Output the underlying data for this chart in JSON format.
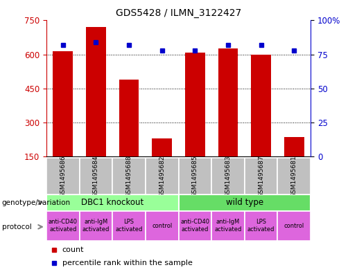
{
  "title": "GDS5428 / ILMN_3122427",
  "samples": [
    "GSM1495686",
    "GSM1495684",
    "GSM1495688",
    "GSM1495682",
    "GSM1495685",
    "GSM1495683",
    "GSM1495687",
    "GSM1495681"
  ],
  "counts": [
    615,
    720,
    490,
    230,
    608,
    625,
    600,
    235
  ],
  "percentile_ranks": [
    82,
    84,
    82,
    78,
    78,
    82,
    82,
    78
  ],
  "y_min": 150,
  "y_max": 750,
  "y_ticks": [
    150,
    300,
    450,
    600,
    750
  ],
  "y2_ticks": [
    0,
    25,
    50,
    75,
    100
  ],
  "bar_color": "#cc0000",
  "dot_color": "#0000cc",
  "bar_width": 0.6,
  "genotype_groups": [
    {
      "label": "DBC1 knockout",
      "start": 0,
      "end": 4,
      "color": "#99ff99"
    },
    {
      "label": "wild type",
      "start": 4,
      "end": 8,
      "color": "#66dd66"
    }
  ],
  "protocol_labels": [
    "anti-CD40\nactivated",
    "anti-IgM\nactivated",
    "LPS\nactivated",
    "control",
    "anti-CD40\nactivated",
    "anti-IgM\nactivated",
    "LPS\nactivated",
    "control"
  ],
  "protocol_color": "#dd66dd",
  "sample_box_color": "#c0c0c0",
  "background_color": "#ffffff",
  "grid_color": "#000000",
  "label_genotype": "genotype/variation",
  "label_protocol": "protocol",
  "legend_count": "count",
  "legend_percentile": "percentile rank within the sample",
  "arrow_color": "#888888"
}
